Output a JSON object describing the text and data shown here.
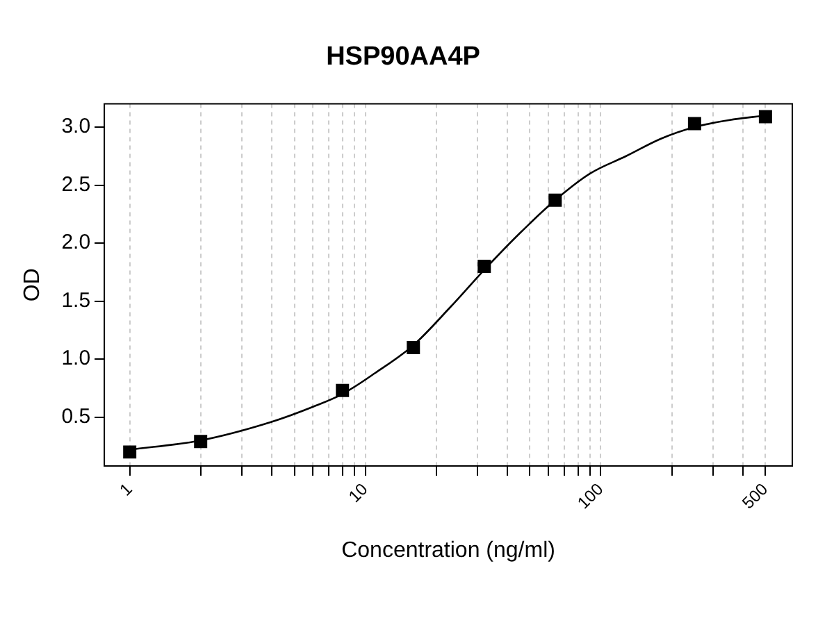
{
  "chart_data": {
    "type": "scatter",
    "title": "HSP90AA4P",
    "xlabel": "Concentration (ng/ml)",
    "ylabel": "OD",
    "log": "x",
    "grid": "x",
    "legend": false,
    "marker": "square",
    "xlim": [
      0.78,
      650
    ],
    "ylim": [
      0.08,
      3.2
    ],
    "xticks": [
      1,
      {
        "value": 2,
        "label": null
      },
      {
        "value": 3,
        "label": null
      },
      {
        "value": 4,
        "label": null
      },
      {
        "value": 5,
        "label": null
      },
      {
        "value": 6,
        "label": null
      },
      {
        "value": 7,
        "label": null
      },
      {
        "value": 8,
        "label": null
      },
      {
        "value": 9,
        "label": null
      },
      10,
      {
        "value": 20,
        "label": null
      },
      {
        "value": 30,
        "label": null
      },
      {
        "value": 40,
        "label": null
      },
      {
        "value": 50,
        "label": null
      },
      {
        "value": 60,
        "label": null
      },
      {
        "value": 70,
        "label": null
      },
      {
        "value": 80,
        "label": null
      },
      {
        "value": 90,
        "label": null
      },
      100,
      {
        "value": 200,
        "label": null
      },
      {
        "value": 300,
        "label": null
      },
      {
        "value": 400,
        "label": null
      },
      500
    ],
    "yticks": [
      0.5,
      {
        "value": 1,
        "label": "1.0"
      },
      1.5,
      {
        "value": 2,
        "label": "2.0"
      },
      2.5,
      {
        "value": 3,
        "label": "3.0"
      }
    ],
    "series": [
      {
        "color": "#000000",
        "x": [
          1,
          2,
          8,
          16,
          32,
          64,
          250,
          500
        ],
        "values": [
          0.2,
          0.29,
          0.73,
          1.1,
          1.8,
          2.37,
          3.03,
          3.09
        ]
      },
      {
        "type": "line",
        "color": "#000000",
        "marker": "none",
        "line_style": "solid",
        "x": [
          1,
          2,
          4,
          6,
          8,
          11,
          16,
          23,
          32,
          45,
          64,
          90,
          128,
          180,
          250,
          350,
          500
        ],
        "values": [
          0.22,
          0.3,
          0.46,
          0.59,
          0.7,
          0.88,
          1.12,
          1.45,
          1.77,
          2.08,
          2.37,
          2.6,
          2.75,
          2.9,
          3.0,
          3.06,
          3.1
        ]
      }
    ]
  }
}
